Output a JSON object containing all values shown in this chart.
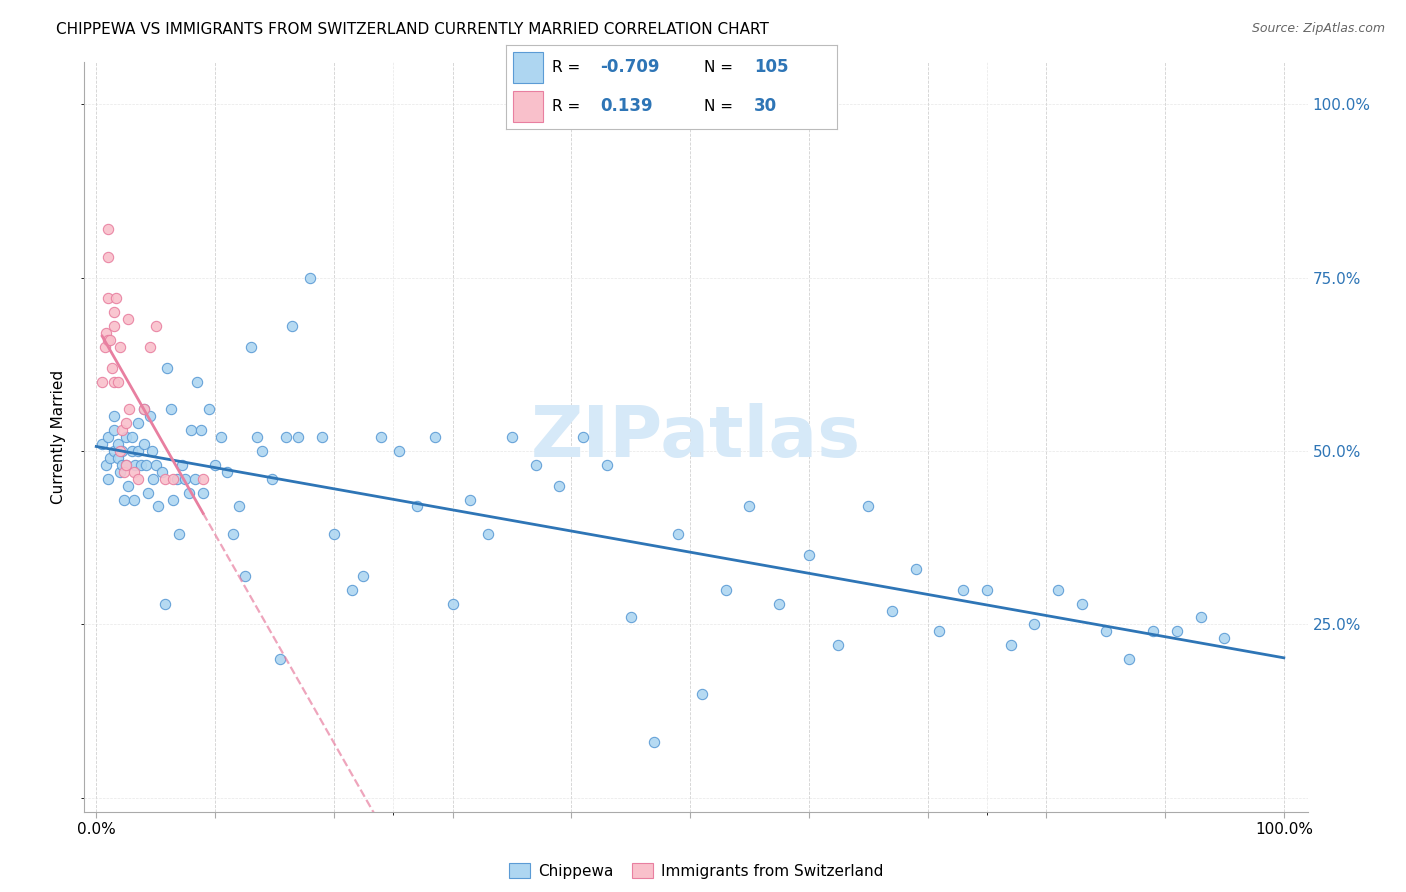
{
  "title": "CHIPPEWA VS IMMIGRANTS FROM SWITZERLAND CURRENTLY MARRIED CORRELATION CHART",
  "source": "Source: ZipAtlas.com",
  "ylabel": "Currently Married",
  "ylabel_right_ticks": [
    "100.0%",
    "75.0%",
    "50.0%",
    "25.0%"
  ],
  "ylabel_right_vals": [
    1.0,
    0.75,
    0.5,
    0.25
  ],
  "legend_blue_R": "-0.709",
  "legend_blue_N": "105",
  "legend_pink_R": "0.139",
  "legend_pink_N": "30",
  "blue_fill": "#AED6F1",
  "pink_fill": "#F9C0CB",
  "blue_edge": "#5B9BD5",
  "pink_edge": "#E87FA0",
  "blue_line": "#2E75B6",
  "pink_line": "#E87FA0",
  "watermark_color": "#D6E9F8",
  "blue_scatter_x": [
    0.005,
    0.008,
    0.01,
    0.01,
    0.012,
    0.015,
    0.015,
    0.015,
    0.018,
    0.018,
    0.02,
    0.022,
    0.022,
    0.023,
    0.025,
    0.025,
    0.027,
    0.03,
    0.03,
    0.032,
    0.033,
    0.035,
    0.035,
    0.038,
    0.04,
    0.04,
    0.042,
    0.044,
    0.045,
    0.047,
    0.048,
    0.05,
    0.052,
    0.055,
    0.058,
    0.06,
    0.063,
    0.065,
    0.068,
    0.07,
    0.072,
    0.075,
    0.078,
    0.08,
    0.083,
    0.085,
    0.088,
    0.09,
    0.095,
    0.1,
    0.105,
    0.11,
    0.115,
    0.12,
    0.125,
    0.13,
    0.135,
    0.14,
    0.148,
    0.155,
    0.16,
    0.165,
    0.17,
    0.18,
    0.19,
    0.2,
    0.215,
    0.225,
    0.24,
    0.255,
    0.27,
    0.285,
    0.3,
    0.315,
    0.33,
    0.35,
    0.37,
    0.39,
    0.41,
    0.43,
    0.45,
    0.47,
    0.49,
    0.51,
    0.53,
    0.55,
    0.575,
    0.6,
    0.625,
    0.65,
    0.67,
    0.69,
    0.71,
    0.73,
    0.75,
    0.77,
    0.79,
    0.81,
    0.83,
    0.85,
    0.87,
    0.89,
    0.91,
    0.93,
    0.95
  ],
  "blue_scatter_y": [
    0.51,
    0.48,
    0.52,
    0.46,
    0.49,
    0.5,
    0.53,
    0.55,
    0.49,
    0.51,
    0.47,
    0.5,
    0.48,
    0.43,
    0.52,
    0.48,
    0.45,
    0.52,
    0.5,
    0.43,
    0.48,
    0.54,
    0.5,
    0.48,
    0.56,
    0.51,
    0.48,
    0.44,
    0.55,
    0.5,
    0.46,
    0.48,
    0.42,
    0.47,
    0.28,
    0.62,
    0.56,
    0.43,
    0.46,
    0.38,
    0.48,
    0.46,
    0.44,
    0.53,
    0.46,
    0.6,
    0.53,
    0.44,
    0.56,
    0.48,
    0.52,
    0.47,
    0.38,
    0.42,
    0.32,
    0.65,
    0.52,
    0.5,
    0.46,
    0.2,
    0.52,
    0.68,
    0.52,
    0.75,
    0.52,
    0.38,
    0.3,
    0.32,
    0.52,
    0.5,
    0.42,
    0.52,
    0.28,
    0.43,
    0.38,
    0.52,
    0.48,
    0.45,
    0.52,
    0.48,
    0.26,
    0.08,
    0.38,
    0.15,
    0.3,
    0.42,
    0.28,
    0.35,
    0.22,
    0.42,
    0.27,
    0.33,
    0.24,
    0.3,
    0.3,
    0.22,
    0.25,
    0.3,
    0.28,
    0.24,
    0.2,
    0.24,
    0.24,
    0.26,
    0.23
  ],
  "pink_scatter_x": [
    0.005,
    0.007,
    0.008,
    0.01,
    0.01,
    0.01,
    0.01,
    0.012,
    0.013,
    0.015,
    0.015,
    0.015,
    0.017,
    0.018,
    0.02,
    0.02,
    0.022,
    0.023,
    0.025,
    0.025,
    0.027,
    0.028,
    0.032,
    0.035,
    0.04,
    0.045,
    0.05,
    0.058,
    0.065,
    0.09
  ],
  "pink_scatter_y": [
    0.6,
    0.65,
    0.67,
    0.82,
    0.78,
    0.72,
    0.66,
    0.66,
    0.62,
    0.7,
    0.68,
    0.6,
    0.72,
    0.6,
    0.65,
    0.5,
    0.53,
    0.47,
    0.54,
    0.48,
    0.69,
    0.56,
    0.47,
    0.46,
    0.56,
    0.65,
    0.68,
    0.46,
    0.46,
    0.46
  ]
}
